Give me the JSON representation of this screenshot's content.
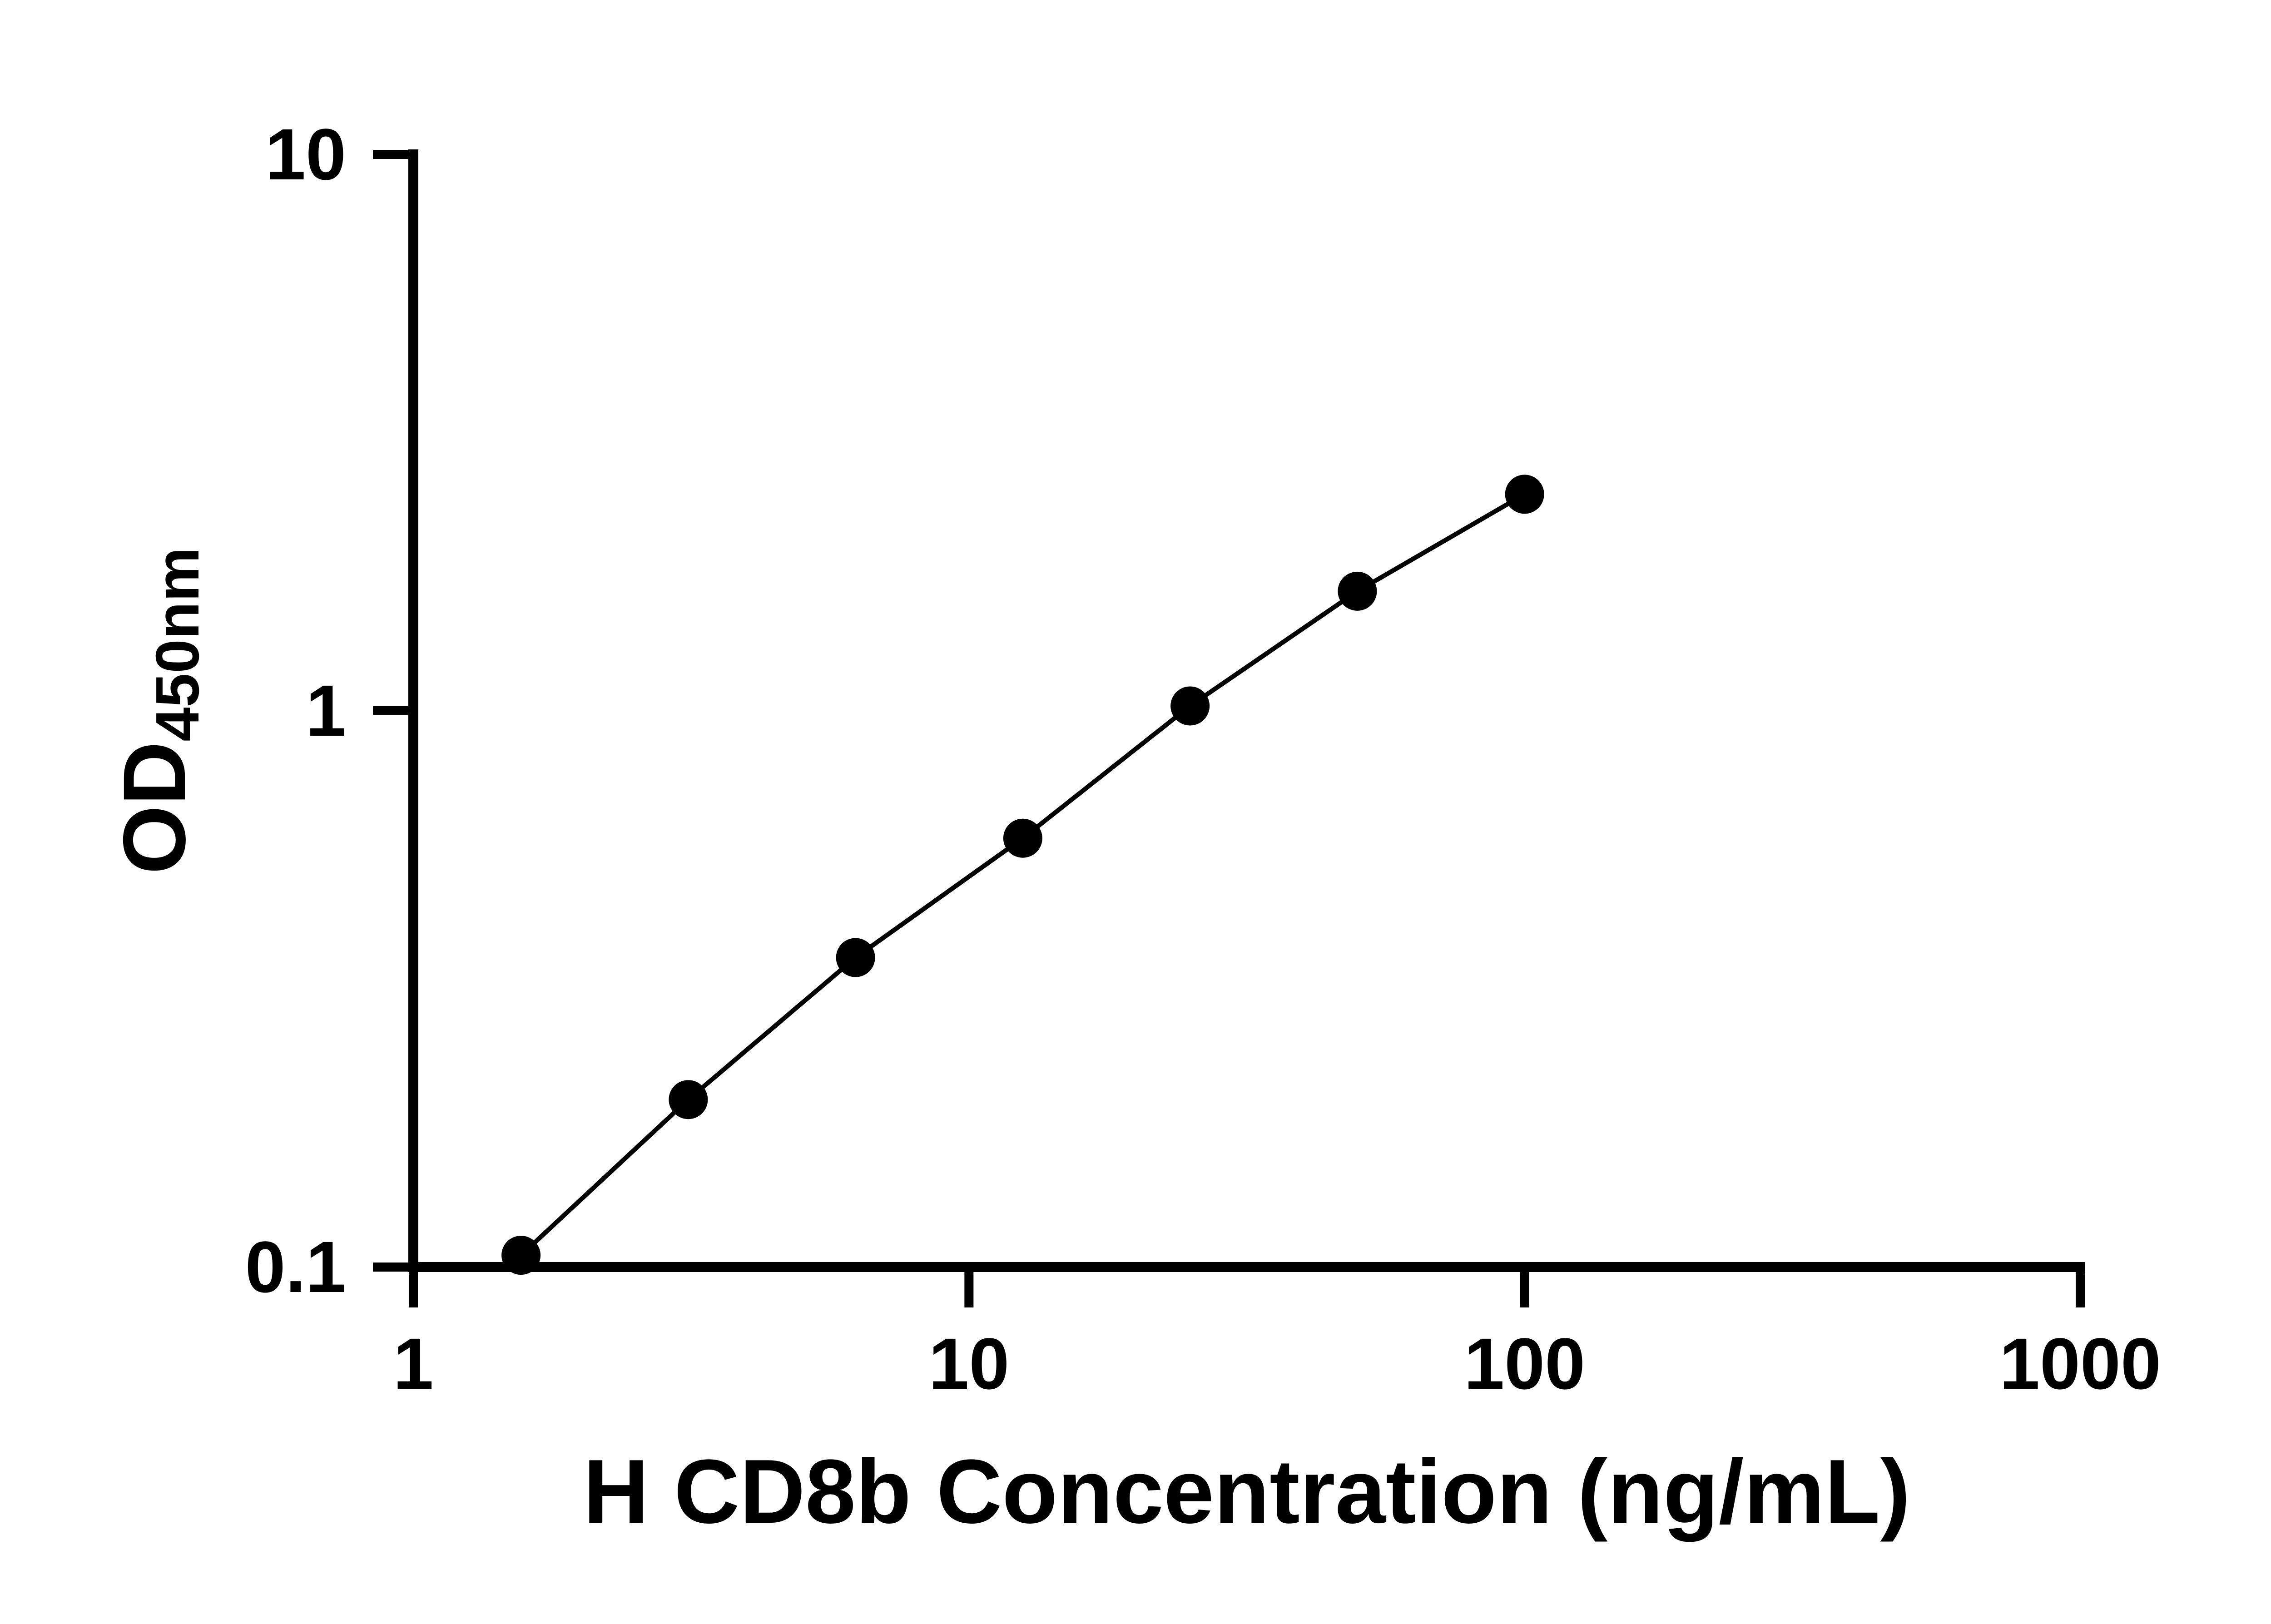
{
  "chart_data": {
    "type": "scatter",
    "x": [
      1.5625,
      3.125,
      6.25,
      12.5,
      25,
      50,
      100
    ],
    "y": [
      0.105,
      0.2,
      0.36,
      0.59,
      1.02,
      1.64,
      2.45
    ],
    "title": "",
    "xlabel": "H CD8b Concentration (ng/mL)",
    "ylabel_main": "OD",
    "ylabel_sub": "450nm",
    "xscale": "log",
    "yscale": "log",
    "xlim": [
      1,
      1000
    ],
    "ylim": [
      0.1,
      10
    ],
    "xticks": {
      "values": [
        1,
        10,
        100,
        1000
      ],
      "labels": [
        "1",
        "10",
        "100",
        "1000"
      ]
    },
    "yticks": {
      "values": [
        0.1,
        1,
        10
      ],
      "labels": [
        "0.1",
        "1",
        "10"
      ]
    },
    "grid": false,
    "legend": null,
    "marker": "filled-circle",
    "line_style": "solid",
    "colors": {
      "axis": "#000000",
      "line": "#000000",
      "marker": "#000000",
      "tick_label": "#000000",
      "background": "#ffffff"
    }
  }
}
